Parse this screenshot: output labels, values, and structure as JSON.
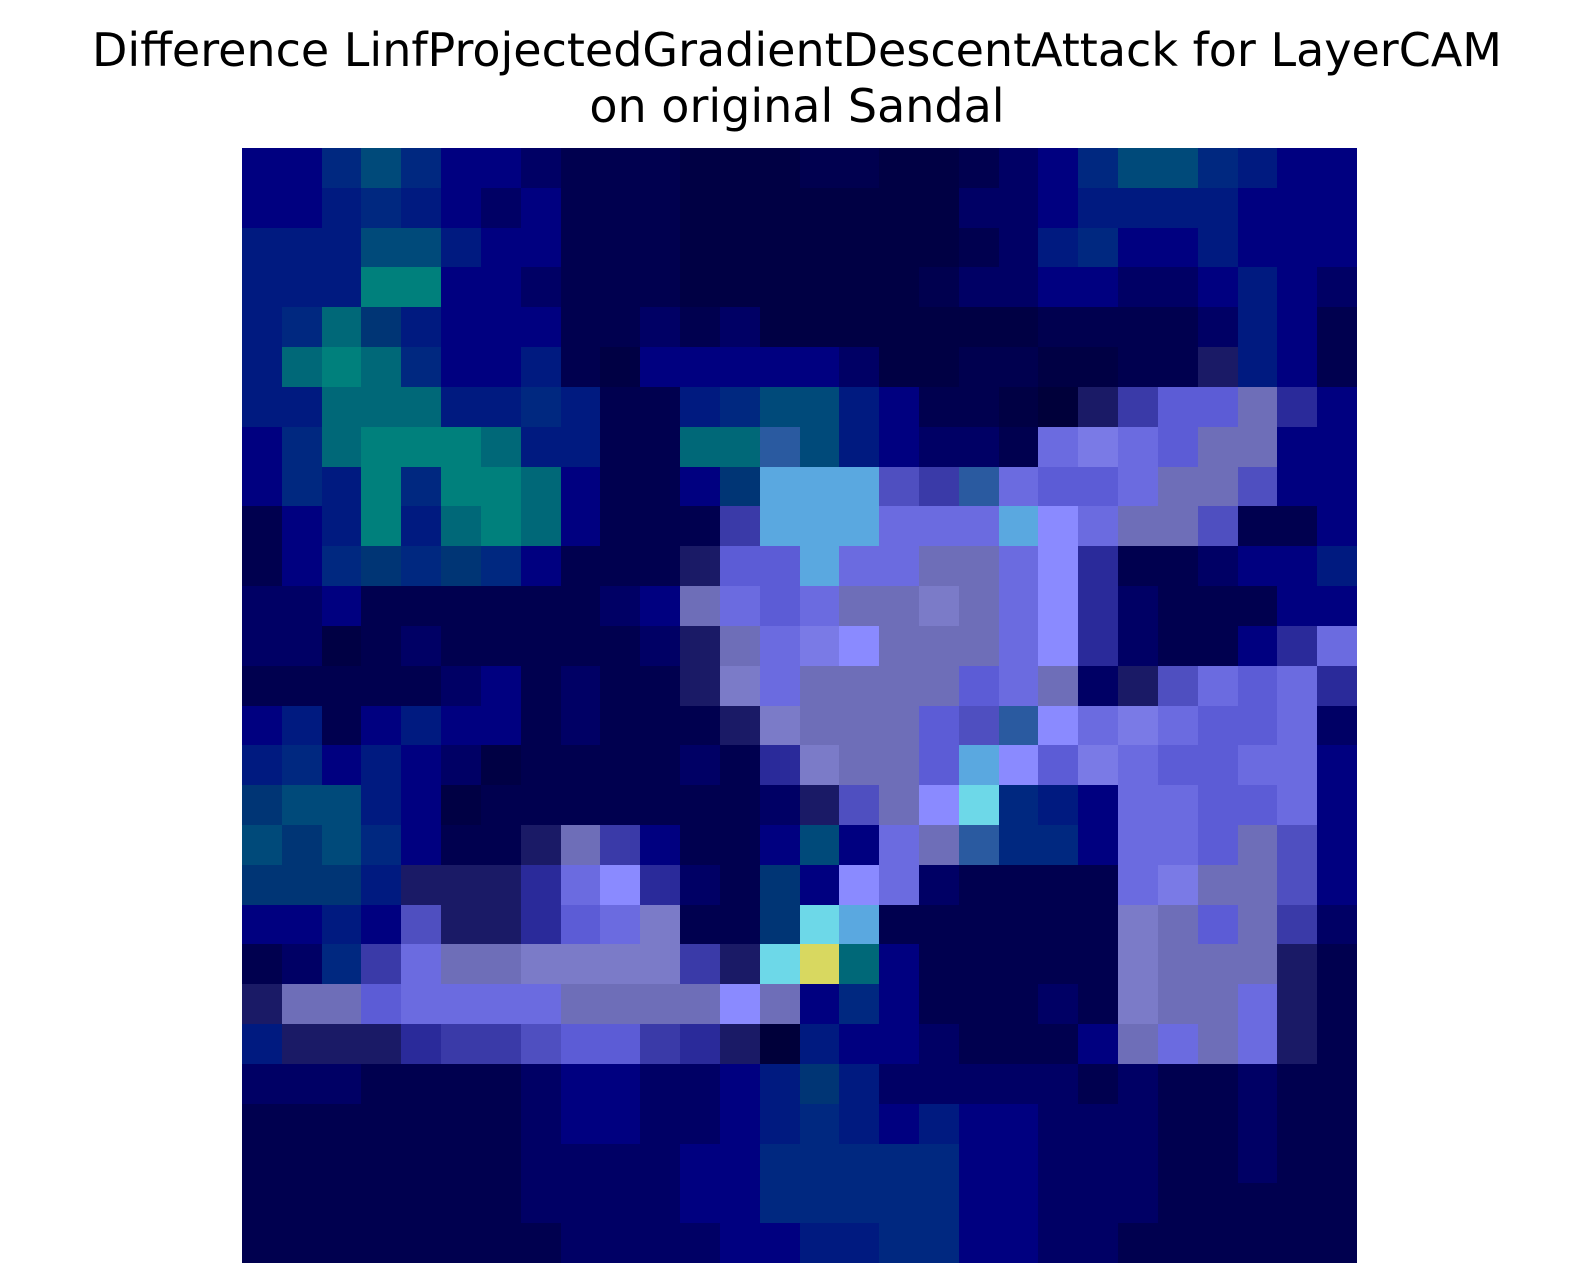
{
  "figure": {
    "title_line1": "Difference LinfProjectedGradientDescentAttack for LayerCAM",
    "title_line2": "on original Sandal"
  },
  "heatmap": {
    "rows": 28,
    "cols": 28,
    "palette": {
      "A": "#000044",
      "B": "#00004f",
      "C": "#000065",
      "D": "#000080",
      "E": "#001a80",
      "F": "#002880",
      "G": "#003575",
      "H": "#004a7a",
      "I": "#006878",
      "J": "#00807c",
      "K": "#1a1a66",
      "L": "#2a2a9a",
      "M": "#3a3aa8",
      "N": "#4f4fc0",
      "O": "#5c5cd6",
      "P": "#6b6be0",
      "Q": "#7a7ae6",
      "R": "#8a8aff",
      "S": "#6e6eb8",
      "T": "#7b7bc8",
      "U": "#5aa8e0",
      "V": "#6dd8e8",
      "W": "#d8d860",
      "X": "#2a5aa0",
      "Y": "#00003a",
      "Z": "#00006a"
    },
    "pixels": [
      "DDFHFDDCBBBAAABBAABCDFHHFEDD",
      "DDEFEDCDBBBAAAAAAACCDEEEEDDD",
      "EEEHHEDDBBBAAAAAAABCEFDDEDDD",
      "EEEJJDDCBBBAAAAAABCCDDCCDEDC",
      "EFIGEDDDBBCBCAAAAAAABBBBCEDB",
      "EIJIFDDEBADDDDDCAABBAABBKEDB",
      "EEIIIEEFEBBEFHHEDBBAYKMOOSLD",
      "DFIJJJIEEBBIIXHEDCCBPQPOSSDD",
      "DFEJFJJIDBBDGUUUNMXPOOPSSNDD",
      "BDEJEIJIDBBBMUUUPPPURPSSNBBD",
      "BDFGFGFDBBBKOOUPPSSPRLBBCDDE",
      "CCDBBBBBBCDSPOPSSTSPRLCBBBDD",
      "CCABCBBBBBCKSPQRSSSPRLCBBDLP",
      "BBBBBCDBCBBKTPSSSSOPSCKNPOPL",
      "DEBDEDDBCBBBKTSSSONXRPQPOOPC",
      "EFDEDCABBBBCBLTSSOUROQPOOPPD",
      "GHHEDABBBBBBBCKNSRVFEDPPOOPD",
      "HGHFDBBKSMDBBDHDPSXFFDPPOSND",
      "GGGEKKKLPRLCBGDRPCBBBBPQSSND",
      "DDEDNKKLOPTBBGVUBBBBBBTSOSMC",
      "BCFMPSSTTTTMKVWIDBBBBBTSSSKB",
      "KSSOPPPPSSSSRSDFDBBBCBTSSPKB",
      "EKKKLMMNOOMLKYEDDCBBBDSPSPKB",
      "CCCBBBBCDDCCDEGECCCCCBCBBCBB",
      "BBBBBBBCDDCCDEFEDEDDCCCBBCBB",
      "BBBBBBBCCCCDDFFFFFDDCCCBBCBB",
      "BBBBBBBCCCCDDFFFFFDDCCCBBBBB",
      "BBBBBBBBCCCCDDEEFFDDCCBBBBBB"
    ]
  }
}
